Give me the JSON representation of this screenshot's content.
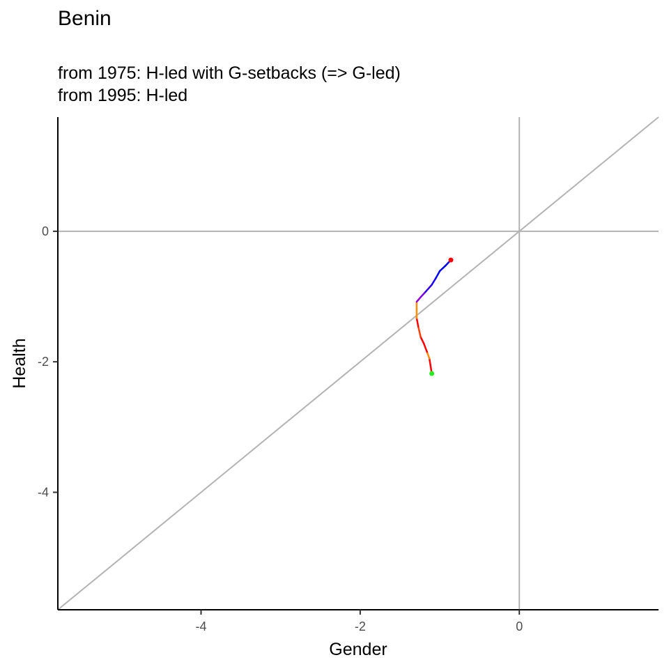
{
  "chart_data": {
    "type": "line",
    "title": "Benin",
    "subtitle": [
      "from 1975:  H-led with G-setbacks (=> G-led)",
      "from 1995:  H-led"
    ],
    "xlabel": "Gender",
    "ylabel": "Health",
    "xlim": [
      -5.8,
      1.75
    ],
    "ylim": [
      -5.8,
      1.75
    ],
    "x_ticks": [
      -4,
      -2,
      0
    ],
    "y_ticks": [
      0,
      -2,
      -4
    ],
    "grid": false,
    "reference_lines": {
      "hline_y": 0,
      "vline_x": 0,
      "diagonal": "y = x",
      "color": "#b3b3b3"
    },
    "trajectory": {
      "start_marker_color": "#22ee22",
      "end_marker_color": "#ff0000",
      "points": [
        {
          "x": -1.1,
          "y": -2.18
        },
        {
          "x": -1.13,
          "y": -1.95
        },
        {
          "x": -1.16,
          "y": -1.85
        },
        {
          "x": -1.2,
          "y": -1.72
        },
        {
          "x": -1.24,
          "y": -1.62
        },
        {
          "x": -1.27,
          "y": -1.46
        },
        {
          "x": -1.29,
          "y": -1.33
        },
        {
          "x": -1.29,
          "y": -1.2
        },
        {
          "x": -1.29,
          "y": -1.08
        },
        {
          "x": -1.24,
          "y": -1.01
        },
        {
          "x": -1.18,
          "y": -0.93
        },
        {
          "x": -1.1,
          "y": -0.82
        },
        {
          "x": -1.05,
          "y": -0.72
        },
        {
          "x": -1.0,
          "y": -0.61
        },
        {
          "x": -0.93,
          "y": -0.53
        },
        {
          "x": -0.86,
          "y": -0.44
        }
      ],
      "segment_colors": [
        "#ff0000",
        "#ff8c00",
        "#ff0000",
        "#ff0000",
        "#ff4000",
        "#ff0000",
        "#ff8c00",
        "#ff8c00",
        "#9400d3",
        "#7a00e6",
        "#3300ff",
        "#1a00ff",
        "#0000ff",
        "#0000ff",
        "#0000ff"
      ]
    }
  }
}
